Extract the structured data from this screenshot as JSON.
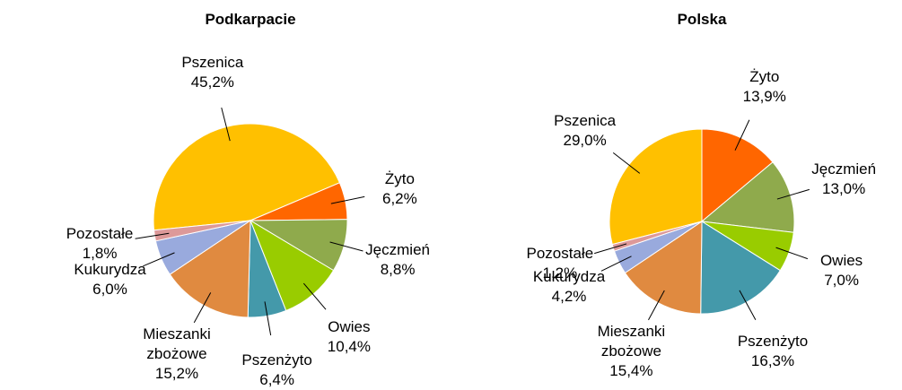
{
  "chart_data": [
    {
      "type": "pie",
      "title": "Podkarpacie",
      "categories": [
        "Pszenica",
        "Żyto",
        "Jęczmień",
        "Owies",
        "Pszenżyto",
        "Mieszanki zbożowe",
        "Kukurydza",
        "Pozostałe"
      ],
      "values": [
        45.2,
        6.2,
        8.8,
        10.4,
        6.4,
        15.2,
        6.0,
        1.8
      ],
      "value_labels": [
        "45,2%",
        "6,2%",
        "8,8%",
        "10,4%",
        "6,4%",
        "15,2%",
        "6,0%",
        "1,8%"
      ],
      "colors": [
        "#ffc000",
        "#ff6600",
        "#8faa4c",
        "#99cc00",
        "#4499aa",
        "#e08a40",
        "#99aadd",
        "#dd9999"
      ]
    },
    {
      "type": "pie",
      "title": "Polska",
      "categories": [
        "Pszenica",
        "Żyto",
        "Jęczmień",
        "Owies",
        "Pszenżyto",
        "Mieszanki zbożowe",
        "Kukurydza",
        "Pozostałe"
      ],
      "values": [
        29.0,
        13.9,
        13.0,
        7.0,
        16.3,
        15.4,
        4.2,
        1.2
      ],
      "value_labels": [
        "29,0%",
        "13,9%",
        "13,0%",
        "7,0%",
        "16,3%",
        "15,4%",
        "4,2%",
        "1,2%"
      ],
      "colors": [
        "#ffc000",
        "#ff6600",
        "#8faa4c",
        "#99cc00",
        "#4499aa",
        "#e08a40",
        "#99aadd",
        "#dd9999"
      ]
    }
  ]
}
